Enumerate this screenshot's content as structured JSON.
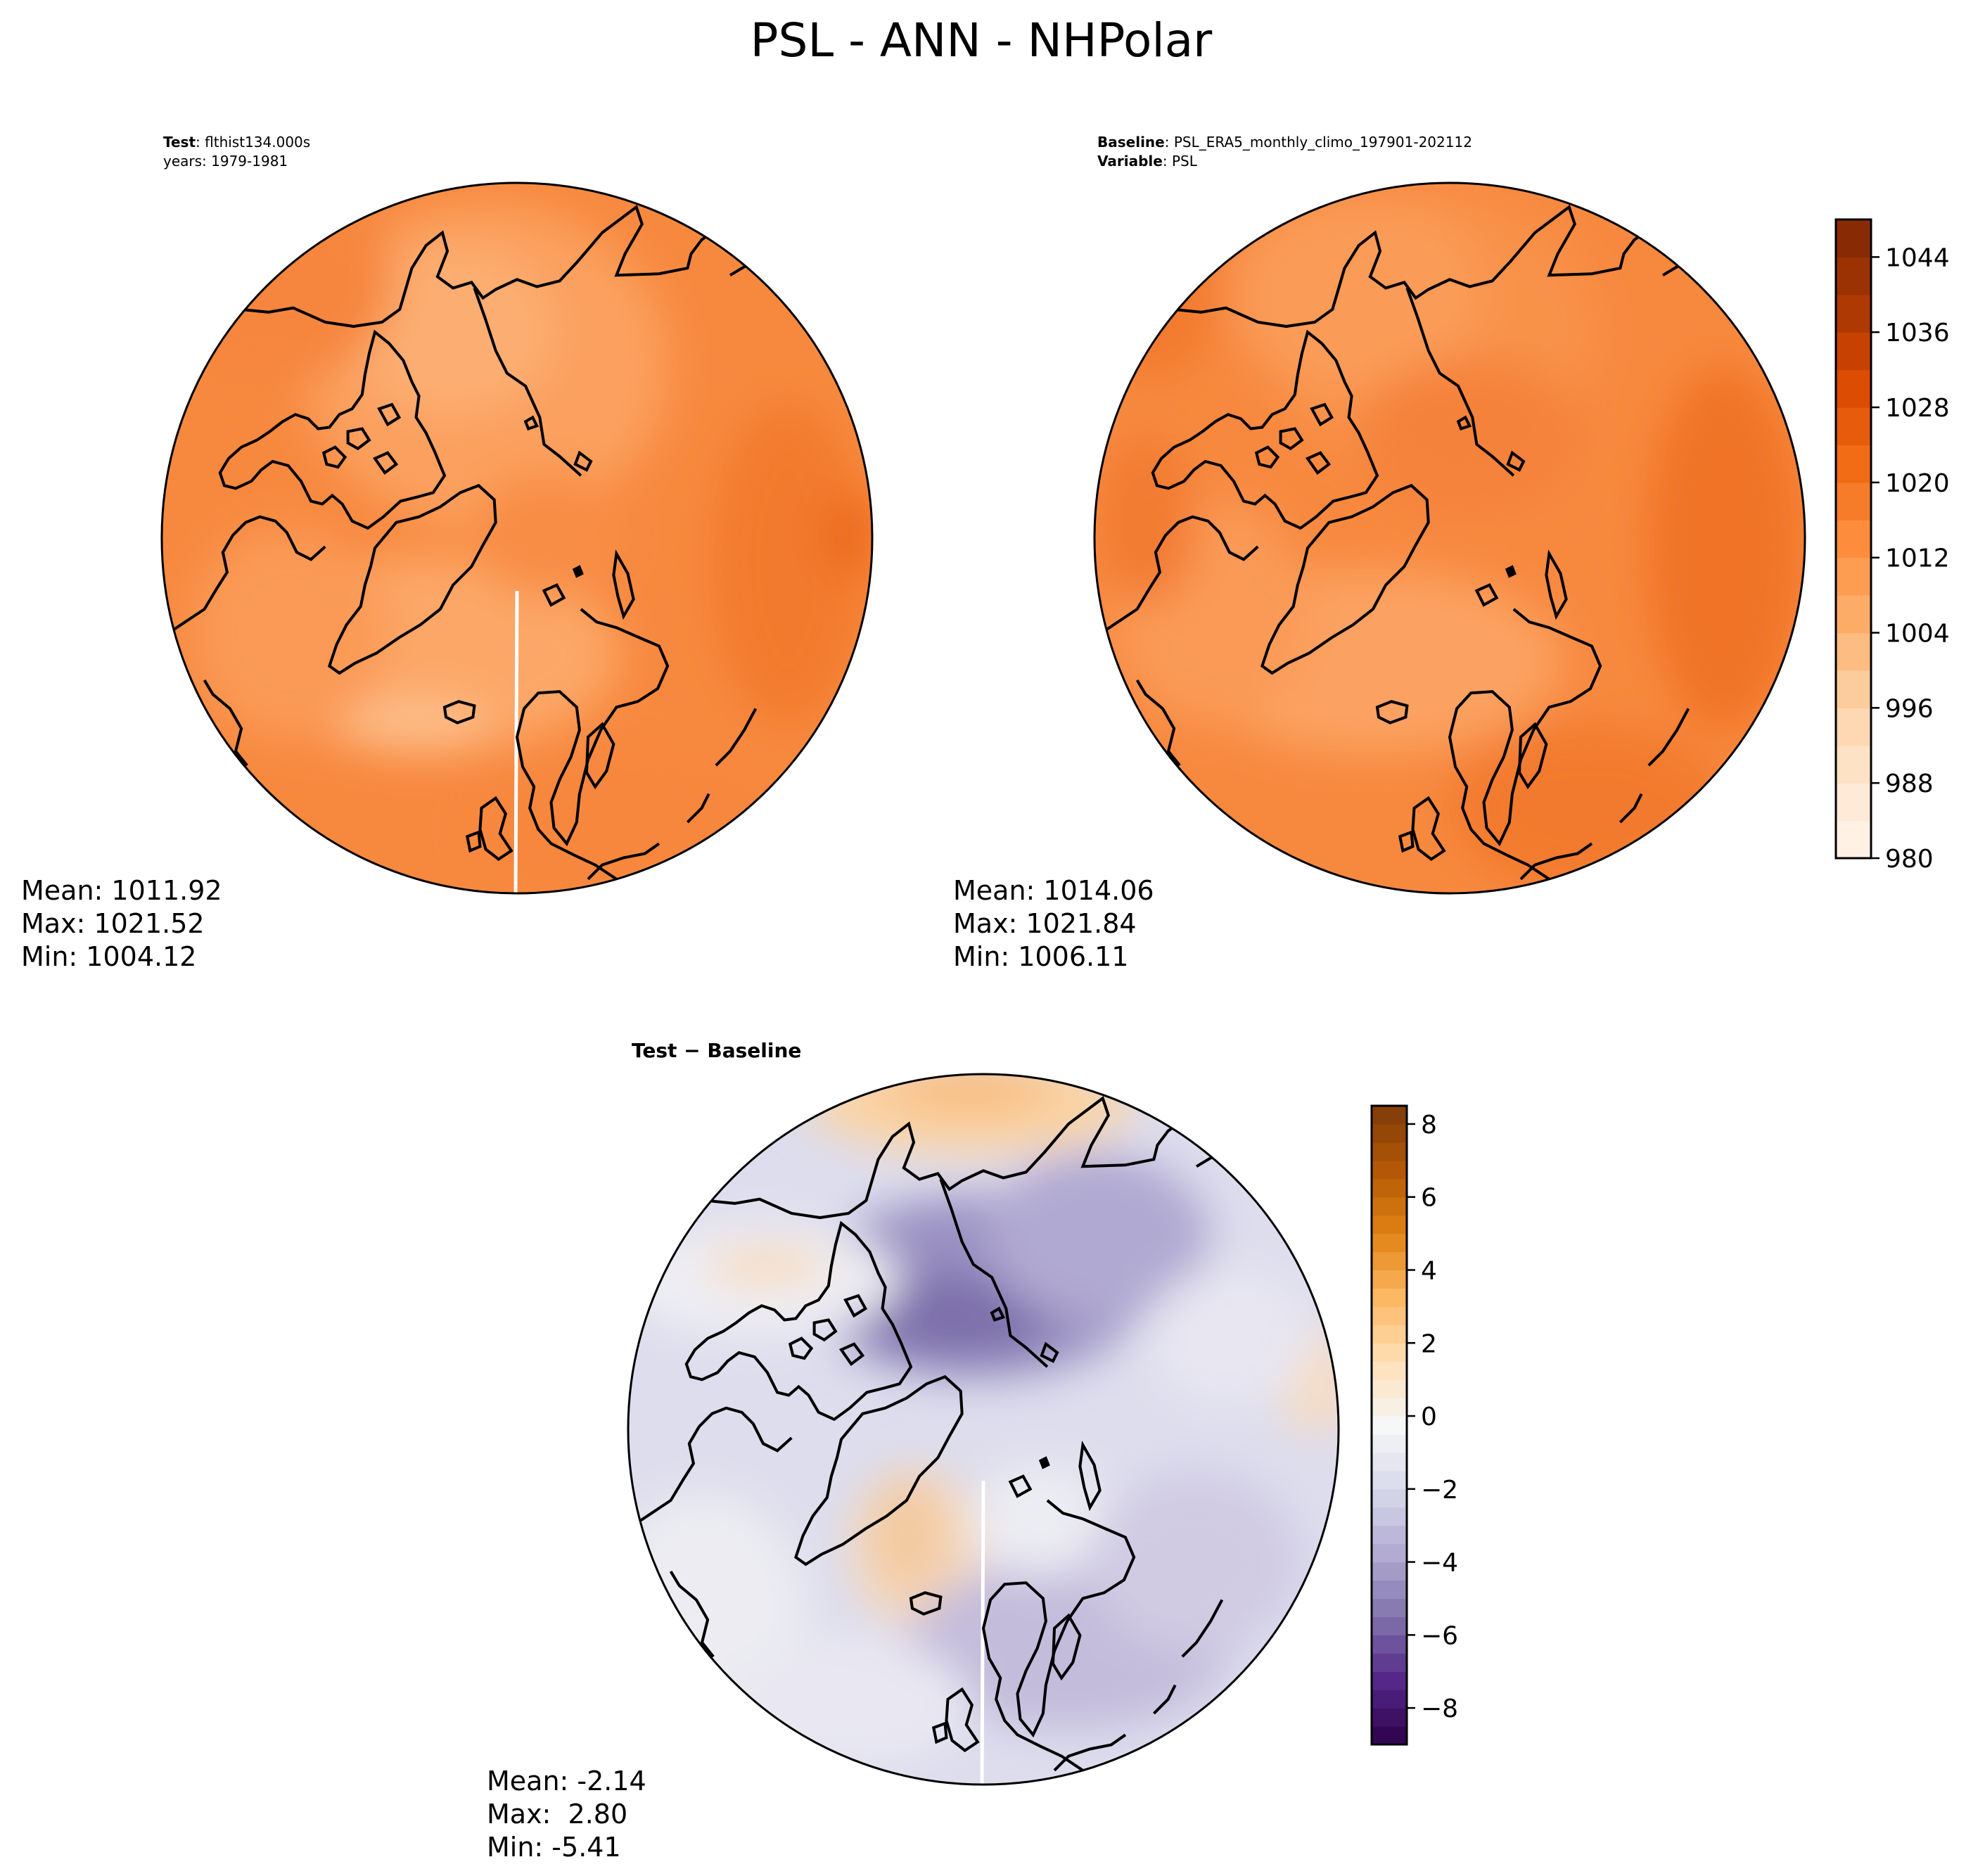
{
  "figure": {
    "title": "PSL - ANN - NHPolar"
  },
  "chart_data": [
    {
      "type": "heatmap",
      "projection": "north-polar-stereographic",
      "panel": "test",
      "header": [
        {
          "bold": "Test",
          "sep": ": ",
          "text": "flthist134.000s"
        },
        {
          "bold": "",
          "sep": "",
          "text": "years: 1979-1981"
        }
      ],
      "stats": {
        "mean": "Mean: 1011.92",
        "max": "Max: 1021.52",
        "min": "Min: 1004.12"
      },
      "colormap": "Oranges",
      "shared_colorbar": true
    },
    {
      "type": "heatmap",
      "projection": "north-polar-stereographic",
      "panel": "baseline",
      "header": [
        {
          "bold": "Baseline",
          "sep": ": ",
          "text": "PSL_ERA5_monthly_climo_197901-202112"
        },
        {
          "bold": "Variable",
          "sep": ": ",
          "text": "PSL"
        }
      ],
      "stats": {
        "mean": "Mean: 1014.06",
        "max": "Max: 1021.84",
        "min": "Min: 1006.11"
      },
      "colormap": "Oranges",
      "colorbar": {
        "range": [
          980,
          1048
        ],
        "step": 4,
        "ticks": [
          "980",
          "988",
          "996",
          "1004",
          "1012",
          "1020",
          "1028",
          "1036",
          "1044"
        ],
        "tick_values": [
          980,
          988,
          996,
          1004,
          1012,
          1020,
          1028,
          1036,
          1044
        ],
        "colors_low_to_high": [
          "#fff5eb",
          "#fee6ce",
          "#fdd0a2",
          "#fdae6b",
          "#fd8d3c",
          "#f16913",
          "#d94801",
          "#a63603",
          "#7f2704"
        ]
      }
    },
    {
      "type": "heatmap",
      "projection": "north-polar-stereographic",
      "panel": "difference",
      "header": [
        {
          "bold": "Test − Baseline",
          "sep": "",
          "text": ""
        }
      ],
      "stats": {
        "mean": "Mean: -2.14",
        "max": "Max:  2.80",
        "min": "Min: -5.41"
      },
      "colormap": "PuOr_r",
      "colorbar": {
        "range": [
          -9,
          8.5
        ],
        "step": 0.5,
        "ticks": [
          "−8",
          "−6",
          "−4",
          "−2",
          "0",
          "2",
          "4",
          "6",
          "8"
        ],
        "tick_values": [
          -8,
          -6,
          -4,
          -2,
          0,
          2,
          4,
          6,
          8
        ],
        "colors_low_to_high": [
          "#2d004b",
          "#542788",
          "#8073ac",
          "#b2abd2",
          "#d8daeb",
          "#f7f7f7",
          "#fee0b6",
          "#fdb863",
          "#e08214",
          "#b35806",
          "#7f3b08"
        ]
      }
    }
  ],
  "colors": {
    "ocean_field_test": "#f78c43",
    "field_high": "#f07025",
    "field_low": "#fda86b",
    "diff_background": "#dcdcec",
    "diff_neg_center": "#7d70ab",
    "diff_pos": "#f7c48c"
  }
}
